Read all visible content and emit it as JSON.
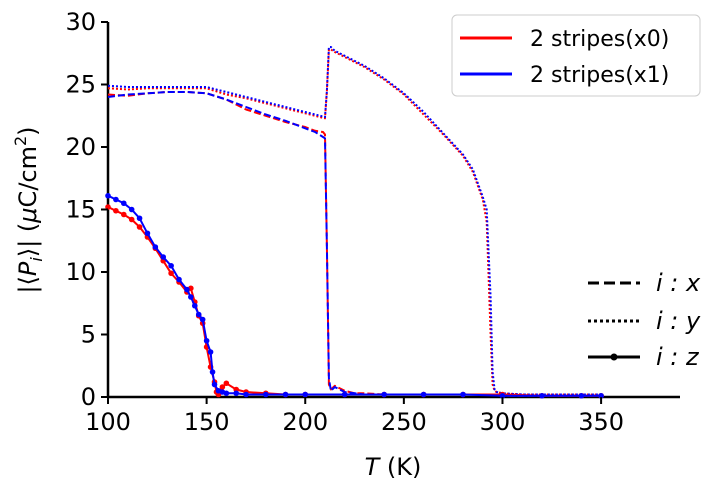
{
  "chart_data": {
    "type": "line",
    "xlabel_var": "T",
    "xlabel_unit": " (K)",
    "ylabel_parts": [
      "|⟨",
      "P",
      "i",
      "⟩| (",
      "μ",
      "C/cm",
      "2",
      ")"
    ],
    "xlim": [
      100,
      390
    ],
    "ylim": [
      0,
      30
    ],
    "xticks": [
      100,
      150,
      200,
      250,
      300,
      350
    ],
    "yticks": [
      0,
      5,
      10,
      15,
      20,
      25,
      30
    ],
    "legend_colors": [
      {
        "label": "2 stripes(x0)",
        "color": "#ff0000"
      },
      {
        "label": "2 stripes(x1)",
        "color": "#0000ff"
      }
    ],
    "legend_styles": [
      {
        "label": "i : x",
        "style": "dashed"
      },
      {
        "label": "i : y",
        "style": "dotted"
      },
      {
        "label": "i : z",
        "style": "solid-marker"
      }
    ],
    "series": [
      {
        "name": "x0 i:x",
        "color": "#ff0000",
        "style": "dashed",
        "x": [
          100,
          110,
          120,
          130,
          140,
          150,
          160,
          170,
          180,
          190,
          200,
          205,
          209,
          210,
          211,
          212,
          213,
          215,
          220,
          225,
          230,
          240,
          250,
          260,
          270,
          280,
          290,
          300,
          310,
          320,
          330,
          340,
          350
        ],
        "y": [
          24.2,
          24.1,
          24.3,
          24.4,
          24.4,
          24.3,
          23.8,
          23.0,
          22.5,
          22.0,
          21.6,
          21.3,
          21.2,
          21.0,
          12.0,
          1.0,
          0.6,
          0.9,
          0.5,
          0.3,
          0.3,
          0.2,
          0.2,
          0.2,
          0.2,
          0.2,
          0.2,
          0.1,
          0.1,
          0.1,
          0.1,
          0.1,
          0.1
        ]
      },
      {
        "name": "x1 i:x",
        "color": "#0000ff",
        "style": "dashed",
        "x": [
          100,
          110,
          120,
          130,
          140,
          150,
          160,
          170,
          180,
          190,
          200,
          205,
          209,
          210,
          211,
          212,
          213,
          215,
          220,
          225,
          230,
          240,
          250,
          260,
          270,
          280,
          290,
          300,
          310,
          320,
          330,
          340,
          350
        ],
        "y": [
          24.0,
          24.2,
          24.3,
          24.4,
          24.4,
          24.3,
          23.8,
          23.2,
          22.6,
          22.1,
          21.5,
          21.2,
          20.8,
          20.7,
          12.0,
          1.5,
          0.5,
          0.8,
          0.4,
          0.3,
          0.2,
          0.2,
          0.2,
          0.2,
          0.2,
          0.2,
          0.2,
          0.1,
          0.1,
          0.1,
          0.1,
          0.1,
          0.1
        ]
      },
      {
        "name": "x0 i:y",
        "color": "#ff0000",
        "style": "dotted",
        "x": [
          100,
          110,
          120,
          130,
          140,
          150,
          160,
          170,
          180,
          190,
          200,
          205,
          210,
          211,
          212,
          213,
          215,
          220,
          230,
          240,
          250,
          260,
          270,
          280,
          285,
          290,
          292,
          294,
          295,
          296,
          297,
          300,
          310,
          320,
          330,
          340,
          350
        ],
        "y": [
          24.7,
          24.6,
          24.7,
          24.7,
          24.7,
          24.7,
          24.2,
          23.9,
          23.5,
          23.1,
          22.7,
          22.5,
          22.3,
          24.5,
          27.8,
          27.8,
          27.6,
          27.2,
          26.4,
          25.4,
          24.2,
          22.6,
          21.0,
          19.3,
          18.0,
          15.8,
          14.0,
          5.0,
          1.0,
          0.5,
          0.4,
          0.3,
          0.2,
          0.2,
          0.2,
          0.2,
          0.2
        ]
      },
      {
        "name": "x1 i:y",
        "color": "#0000ff",
        "style": "dotted",
        "x": [
          100,
          110,
          120,
          130,
          140,
          150,
          160,
          170,
          180,
          190,
          200,
          205,
          210,
          211,
          212,
          213,
          215,
          220,
          230,
          240,
          250,
          260,
          270,
          280,
          285,
          290,
          292,
          294,
          295,
          296,
          297,
          300,
          310,
          320,
          330,
          340,
          350
        ],
        "y": [
          24.9,
          24.8,
          24.8,
          24.8,
          24.8,
          24.8,
          24.4,
          24.0,
          23.6,
          23.2,
          22.8,
          22.6,
          22.4,
          24.5,
          28.0,
          28.0,
          27.7,
          27.3,
          26.5,
          25.5,
          24.3,
          22.8,
          21.1,
          19.4,
          18.2,
          16.0,
          15.0,
          8.0,
          2.0,
          0.6,
          0.4,
          0.3,
          0.2,
          0.2,
          0.2,
          0.2,
          0.2
        ]
      },
      {
        "name": "x0 i:z",
        "color": "#ff0000",
        "style": "solid-marker",
        "x": [
          100,
          104,
          108,
          112,
          116,
          120,
          124,
          128,
          132,
          136,
          140,
          142,
          144,
          146,
          148,
          150,
          152,
          154,
          155,
          156,
          158,
          160,
          165,
          170,
          180,
          190,
          200,
          220,
          240,
          260,
          280,
          300,
          320,
          340,
          350
        ],
        "y": [
          15.2,
          14.9,
          14.6,
          14.2,
          13.6,
          12.8,
          11.9,
          10.9,
          9.9,
          9.2,
          8.4,
          8.7,
          7.6,
          6.5,
          5.9,
          4.0,
          2.4,
          1.2,
          0.4,
          0.2,
          0.8,
          1.1,
          0.6,
          0.4,
          0.3,
          0.2,
          0.2,
          0.2,
          0.2,
          0.2,
          0.2,
          0.2,
          0.1,
          0.1,
          0.1
        ]
      },
      {
        "name": "x1 i:z",
        "color": "#0000ff",
        "style": "solid-marker",
        "x": [
          100,
          104,
          108,
          112,
          116,
          120,
          124,
          128,
          132,
          136,
          140,
          142,
          144,
          146,
          148,
          150,
          152,
          153,
          154,
          156,
          158,
          160,
          165,
          170,
          180,
          190,
          200,
          220,
          240,
          260,
          280,
          300,
          320,
          340,
          350
        ],
        "y": [
          16.1,
          15.8,
          15.5,
          15.0,
          14.3,
          13.1,
          12.0,
          11.2,
          10.5,
          9.4,
          8.6,
          8.0,
          7.3,
          6.6,
          6.2,
          4.5,
          3.6,
          2.0,
          1.0,
          0.5,
          0.4,
          0.3,
          0.3,
          0.2,
          0.2,
          0.2,
          0.2,
          0.2,
          0.2,
          0.2,
          0.2,
          0.1,
          0.1,
          0.1,
          0.1
        ]
      }
    ]
  }
}
